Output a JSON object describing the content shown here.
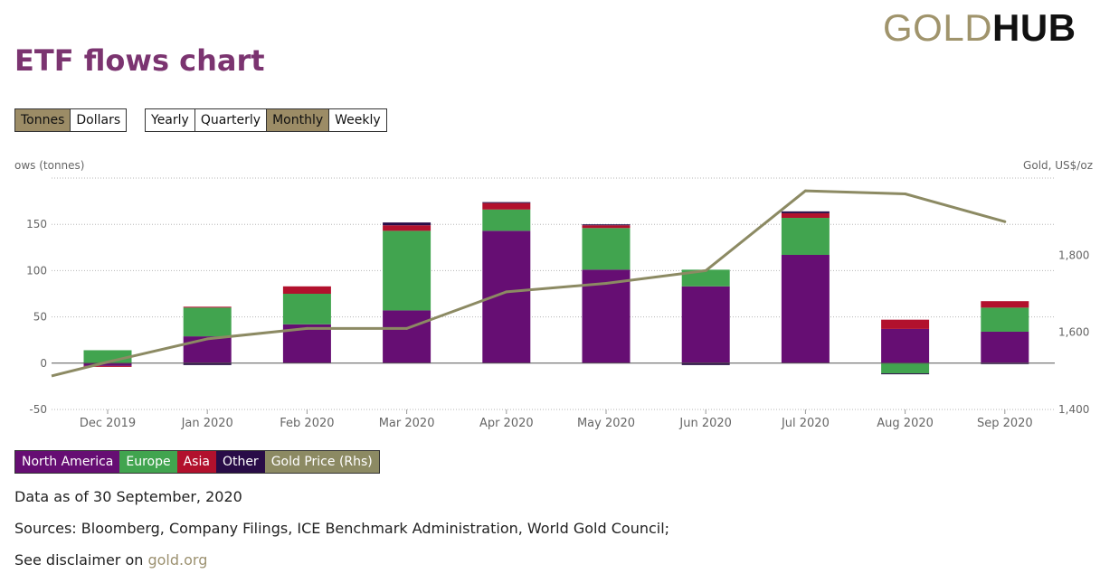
{
  "logo": {
    "part1": "GOLD",
    "part2": "HUB"
  },
  "page_title": "ETF flows chart",
  "unit_buttons": [
    {
      "label": "Tonnes",
      "active": true
    },
    {
      "label": "Dollars",
      "active": false
    }
  ],
  "period_buttons": [
    {
      "label": "Yearly",
      "active": false
    },
    {
      "label": "Quarterly",
      "active": false
    },
    {
      "label": "Monthly",
      "active": true
    },
    {
      "label": "Weekly",
      "active": false
    }
  ],
  "colors": {
    "north_america": "#660e73",
    "europe": "#41a44f",
    "asia": "#b2112d",
    "other": "#290c47",
    "gold_price": "#8c8a63",
    "active_button": "#9c8c66"
  },
  "chart_data": {
    "type": "bar",
    "stacked": true,
    "title": "ETF flows chart",
    "ylabel": "ows (tonnes)",
    "y2label": "Gold, US$/oz",
    "ylim": [
      -50,
      200
    ],
    "y2lim": [
      1400,
      2000
    ],
    "yticks": [
      -50,
      0,
      50,
      100,
      150
    ],
    "y2ticks": [
      1400,
      1600,
      1800
    ],
    "categories": [
      "Dec 2019",
      "Jan 2020",
      "Feb 2020",
      "Mar 2020",
      "Apr 2020",
      "May 2020",
      "Jun 2020",
      "Jul 2020",
      "Aug 2020",
      "Sep 2020"
    ],
    "series": [
      {
        "name": "North America",
        "key": "north_america",
        "values": [
          -3,
          29,
          42,
          57,
          143,
          101,
          83,
          117,
          37,
          34
        ]
      },
      {
        "name": "Europe",
        "key": "europe",
        "values": [
          14,
          31,
          33,
          86,
          23,
          45,
          18,
          40,
          -11,
          26
        ]
      },
      {
        "name": "Asia",
        "key": "asia",
        "values": [
          -1,
          1,
          8,
          6,
          7,
          3,
          0,
          5,
          10,
          7
        ]
      },
      {
        "name": "Other",
        "key": "other",
        "values": [
          0,
          -2,
          0,
          3,
          1,
          1,
          -2,
          2,
          -1,
          -1
        ]
      }
    ],
    "line": {
      "name": "Gold Price (Rhs)",
      "key": "gold_price",
      "axis": "right",
      "start_value": 1487,
      "values": [
        1523,
        1583,
        1610,
        1610,
        1705,
        1727,
        1760,
        1967,
        1959,
        1887
      ]
    }
  },
  "legend_items": [
    {
      "label": "North America",
      "key": "north_america"
    },
    {
      "label": "Europe",
      "key": "europe"
    },
    {
      "label": "Asia",
      "key": "asia"
    },
    {
      "label": "Other",
      "key": "other"
    },
    {
      "label": "Gold Price (Rhs)",
      "key": "gold_price"
    }
  ],
  "footer": {
    "data_as_of": "Data as of 30 September, 2020",
    "sources": "Sources: Bloomberg, Company Filings, ICE Benchmark Administration, World Gold Council;",
    "disclaimer_prefix": "See disclaimer on ",
    "disclaimer_link": "gold.org"
  }
}
